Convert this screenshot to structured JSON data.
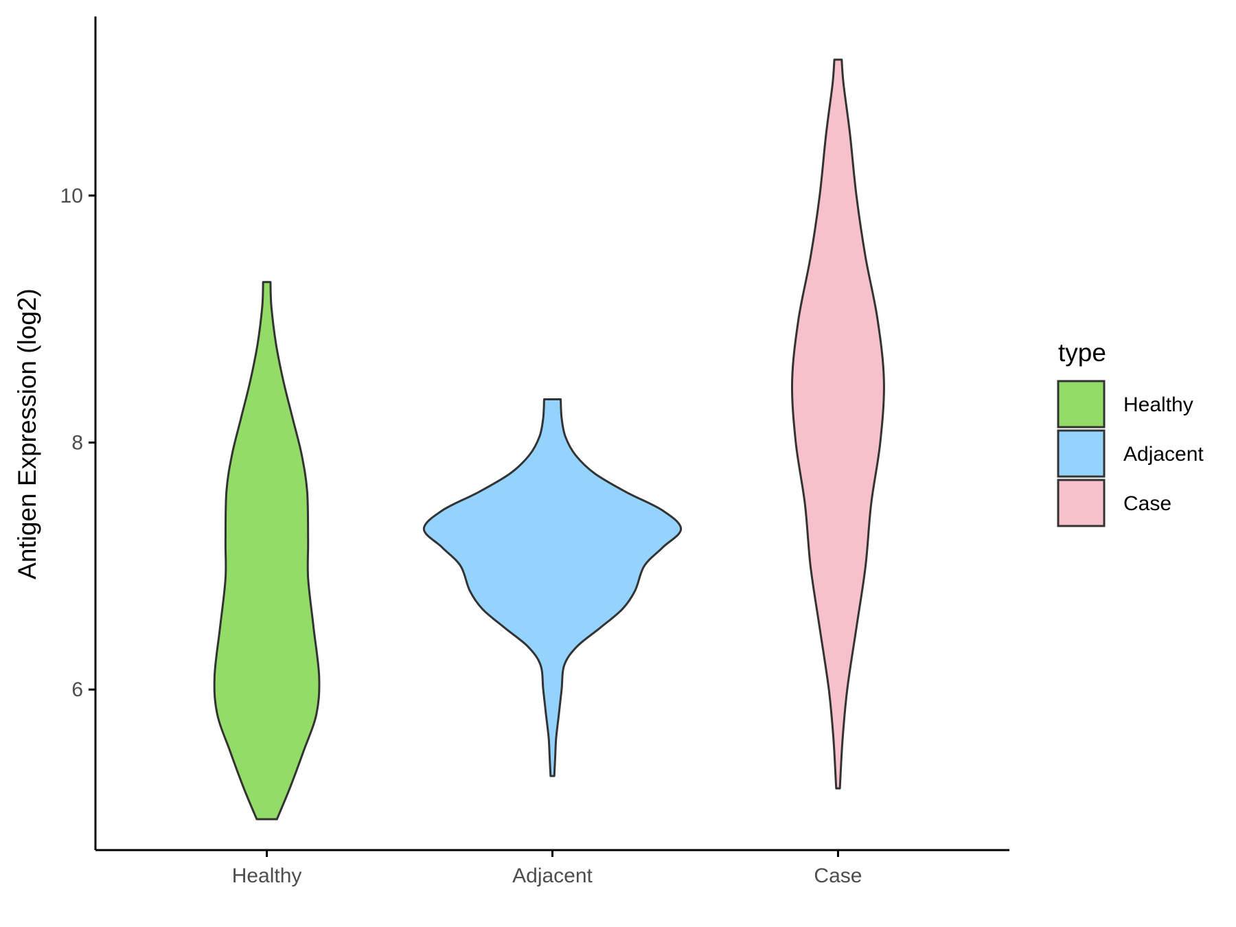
{
  "chart_data": {
    "type": "violin",
    "title": "",
    "xlabel": "",
    "ylabel": "Antigen Expression (log2)",
    "categories": [
      "Healthy",
      "Adjacent",
      "Case"
    ],
    "y_ticks": [
      6,
      8,
      10
    ],
    "ylim": [
      4.7,
      11.45
    ],
    "grid": false,
    "legend": {
      "title": "type",
      "position": "right",
      "entries": [
        "Healthy",
        "Adjacent",
        "Case"
      ]
    },
    "colors": {
      "Healthy": "#93dc68",
      "Adjacent": "#94d3fd",
      "Case": "#f7c1cc",
      "outline": "#333333"
    },
    "series": [
      {
        "category": "Healthy",
        "y_min": 4.95,
        "y_max": 9.3,
        "density_profile": [
          [
            4.95,
            0.11
          ],
          [
            5.2,
            0.25
          ],
          [
            5.5,
            0.4
          ],
          [
            5.8,
            0.54
          ],
          [
            6.1,
            0.57
          ],
          [
            6.5,
            0.51
          ],
          [
            6.9,
            0.45
          ],
          [
            7.2,
            0.45
          ],
          [
            7.6,
            0.44
          ],
          [
            7.9,
            0.38
          ],
          [
            8.2,
            0.28
          ],
          [
            8.5,
            0.18
          ],
          [
            8.8,
            0.1
          ],
          [
            9.1,
            0.05
          ],
          [
            9.3,
            0.04
          ]
        ]
      },
      {
        "category": "Adjacent",
        "y_min": 5.3,
        "y_max": 8.35,
        "density_profile": [
          [
            5.3,
            0.02
          ],
          [
            5.45,
            0.03
          ],
          [
            5.6,
            0.04
          ],
          [
            5.8,
            0.07
          ],
          [
            6.0,
            0.1
          ],
          [
            6.2,
            0.13
          ],
          [
            6.35,
            0.27
          ],
          [
            6.5,
            0.52
          ],
          [
            6.65,
            0.76
          ],
          [
            6.8,
            0.9
          ],
          [
            7.0,
            1.0
          ],
          [
            7.15,
            1.2
          ],
          [
            7.3,
            1.4
          ],
          [
            7.45,
            1.2
          ],
          [
            7.6,
            0.8
          ],
          [
            7.75,
            0.46
          ],
          [
            7.9,
            0.25
          ],
          [
            8.05,
            0.14
          ],
          [
            8.2,
            0.1
          ],
          [
            8.35,
            0.09
          ]
        ]
      },
      {
        "category": "Case",
        "y_min": 5.2,
        "y_max": 11.1,
        "density_profile": [
          [
            5.2,
            0.02
          ],
          [
            5.6,
            0.05
          ],
          [
            6.0,
            0.1
          ],
          [
            6.5,
            0.2
          ],
          [
            7.0,
            0.3
          ],
          [
            7.5,
            0.36
          ],
          [
            8.0,
            0.46
          ],
          [
            8.5,
            0.5
          ],
          [
            9.0,
            0.43
          ],
          [
            9.5,
            0.3
          ],
          [
            10.0,
            0.2
          ],
          [
            10.5,
            0.13
          ],
          [
            10.9,
            0.06
          ],
          [
            11.1,
            0.04
          ]
        ]
      }
    ]
  }
}
